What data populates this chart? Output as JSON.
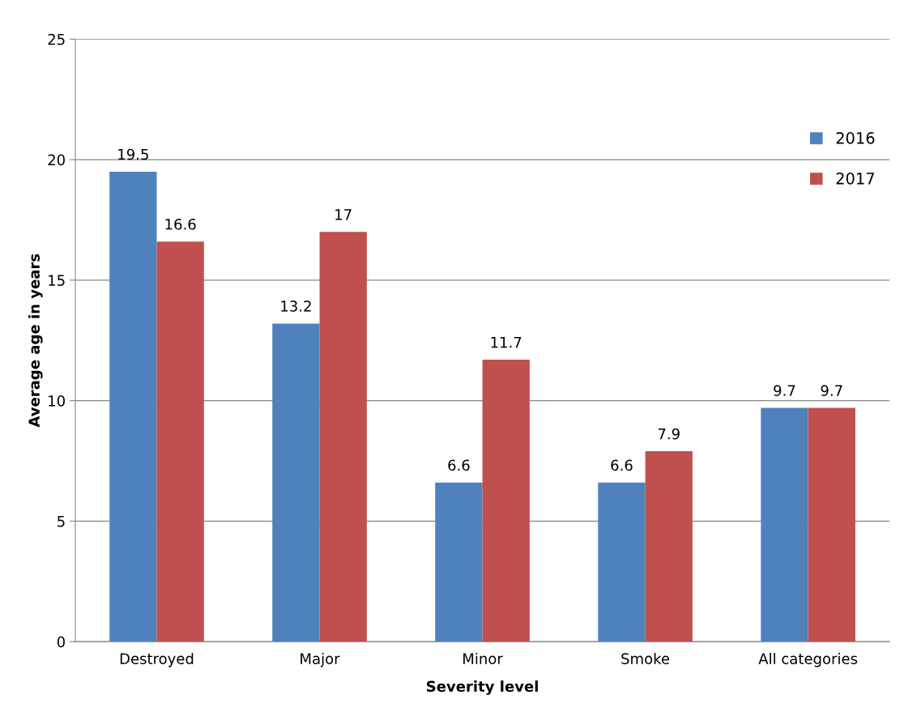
{
  "chart_data": {
    "type": "bar",
    "xlabel": "Severity level",
    "ylabel": "Average age in years",
    "categories": [
      "Destroyed",
      "Major",
      "Minor",
      "Smoke",
      "All categories"
    ],
    "series": [
      {
        "name": "2016",
        "color": "#4f81bd",
        "values": [
          19.5,
          13.2,
          6.6,
          6.6,
          9.7
        ]
      },
      {
        "name": "2017",
        "color": "#c0504d",
        "values": [
          16.6,
          17,
          11.7,
          7.9,
          9.7
        ]
      }
    ],
    "ylim": [
      0,
      25
    ],
    "yticks": [
      0,
      5,
      10,
      15,
      20,
      25
    ],
    "grid": "y",
    "legend": "right",
    "data_labels": true
  }
}
